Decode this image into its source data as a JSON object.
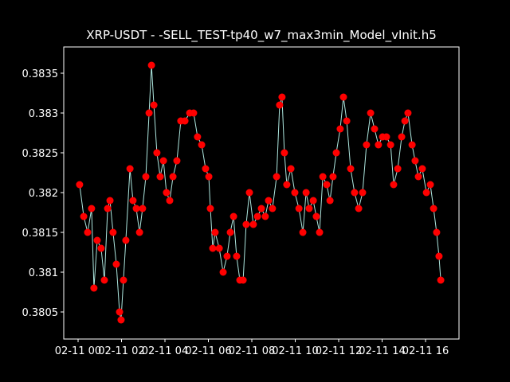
{
  "chart_data": {
    "type": "line",
    "title": "XRP-USDT - -SELL_TEST-tp40_w7_max3min_Model_vInit.h5",
    "x": [
      0.07,
      0.26,
      0.44,
      0.62,
      0.73,
      0.88,
      1.06,
      1.21,
      1.36,
      1.47,
      1.61,
      1.76,
      1.91,
      1.98,
      2.09,
      2.2,
      2.39,
      2.53,
      2.68,
      2.83,
      2.97,
      3.12,
      3.27,
      3.38,
      3.49,
      3.63,
      3.78,
      3.93,
      4.07,
      4.22,
      4.37,
      4.55,
      4.73,
      4.92,
      5.14,
      5.32,
      5.5,
      5.69,
      5.87,
      6.02,
      6.09,
      6.2,
      6.31,
      6.5,
      6.68,
      6.86,
      7.01,
      7.16,
      7.3,
      7.45,
      7.6,
      7.74,
      7.89,
      8.07,
      8.26,
      8.44,
      8.62,
      8.77,
      8.95,
      9.14,
      9.28,
      9.39,
      9.5,
      9.61,
      9.8,
      9.98,
      10.17,
      10.35,
      10.5,
      10.64,
      10.83,
      10.97,
      11.12,
      11.27,
      11.45,
      11.6,
      11.74,
      11.89,
      12.07,
      12.22,
      12.37,
      12.55,
      12.73,
      12.92,
      13.1,
      13.28,
      13.47,
      13.65,
      13.83,
      14.02,
      14.2,
      14.39,
      14.53,
      14.72,
      14.9,
      15.05,
      15.19,
      15.38,
      15.52,
      15.67,
      15.85,
      16.04,
      16.22,
      16.37,
      16.51,
      16.62,
      16.7
    ],
    "values": [
      0.3821,
      0.3817,
      0.3815,
      0.3818,
      0.3808,
      0.3814,
      0.3813,
      0.3809,
      0.3818,
      0.3819,
      0.3815,
      0.3811,
      0.3805,
      0.3804,
      0.3809,
      0.3814,
      0.3823,
      0.3819,
      0.3818,
      0.3815,
      0.3818,
      0.3822,
      0.383,
      0.3836,
      0.3831,
      0.3825,
      0.3822,
      0.3824,
      0.382,
      0.3819,
      0.3822,
      0.3824,
      0.3829,
      0.3829,
      0.383,
      0.383,
      0.3827,
      0.3826,
      0.3823,
      0.3822,
      0.3818,
      0.3813,
      0.3815,
      0.3813,
      0.381,
      0.3812,
      0.3815,
      0.3817,
      0.3812,
      0.3809,
      0.3809,
      0.3816,
      0.382,
      0.3816,
      0.3817,
      0.3818,
      0.3817,
      0.3819,
      0.3818,
      0.3822,
      0.3831,
      0.3832,
      0.3825,
      0.3821,
      0.3823,
      0.382,
      0.3818,
      0.3815,
      0.382,
      0.3818,
      0.3819,
      0.3817,
      0.3815,
      0.3822,
      0.3821,
      0.3819,
      0.3822,
      0.3825,
      0.3828,
      0.3832,
      0.3829,
      0.3823,
      0.382,
      0.3818,
      0.382,
      0.3826,
      0.383,
      0.3828,
      0.3826,
      0.3827,
      0.3827,
      0.3826,
      0.3821,
      0.3823,
      0.3827,
      0.3829,
      0.383,
      0.3826,
      0.3824,
      0.3822,
      0.3823,
      0.382,
      0.3821,
      0.3818,
      0.3815,
      0.3812,
      0.3809
    ],
    "marker_color": "#ff0000",
    "line_color": "#aee8e0",
    "xlim": [
      -0.66,
      17.54
    ],
    "xticks": [
      {
        "value": 0,
        "label": "02-11 00"
      },
      {
        "value": 2,
        "label": "02-11 02"
      },
      {
        "value": 4,
        "label": "02-11 04"
      },
      {
        "value": 6,
        "label": "02-11 06"
      },
      {
        "value": 8,
        "label": "02-11 08"
      },
      {
        "value": 10,
        "label": "02-11 10"
      },
      {
        "value": 12,
        "label": "02-11 12"
      },
      {
        "value": 14,
        "label": "02-11 14"
      },
      {
        "value": 16,
        "label": "02-11 16"
      }
    ],
    "ylim": [
      0.38016,
      0.38383
    ],
    "yticks": [
      0.3805,
      0.381,
      0.3815,
      0.382,
      0.3825,
      0.383,
      0.3835
    ]
  }
}
